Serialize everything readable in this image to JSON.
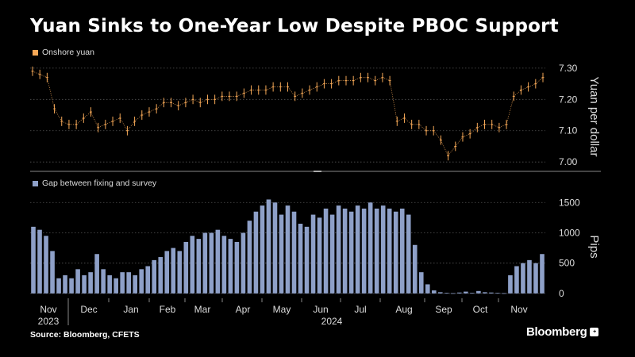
{
  "title": "Yuan Sinks to One-Year Low Despite PBOC Support",
  "source": "Source: Bloomberg, CFETS",
  "brand": "Bloomberg",
  "colors": {
    "yuan": "#f5a857",
    "gap": "#8ea0c8",
    "grid": "#555",
    "background": "#000000"
  },
  "chart_data": [
    {
      "type": "line",
      "series": [
        {
          "name": "Onshore yuan",
          "values": [
            7.29,
            7.28,
            7.27,
            7.17,
            7.13,
            7.12,
            7.12,
            7.14,
            7.16,
            7.11,
            7.12,
            7.13,
            7.14,
            7.1,
            7.13,
            7.15,
            7.16,
            7.17,
            7.19,
            7.19,
            7.18,
            7.19,
            7.2,
            7.19,
            7.2,
            7.2,
            7.21,
            7.21,
            7.21,
            7.22,
            7.23,
            7.23,
            7.23,
            7.24,
            7.24,
            7.24,
            7.21,
            7.22,
            7.23,
            7.24,
            7.25,
            7.25,
            7.26,
            7.26,
            7.26,
            7.27,
            7.27,
            7.26,
            7.27,
            7.26,
            7.13,
            7.14,
            7.12,
            7.12,
            7.1,
            7.1,
            7.07,
            7.02,
            7.05,
            7.08,
            7.09,
            7.11,
            7.12,
            7.12,
            7.11,
            7.12,
            7.21,
            7.23,
            7.24,
            7.25,
            7.27
          ]
        }
      ],
      "ylabel": "Yuan per dollar",
      "ylim": [
        6.97,
        7.32
      ],
      "yticks": [
        "7.30",
        "7.20",
        "7.10",
        "7.00"
      ],
      "grid": true
    },
    {
      "type": "bar",
      "series": [
        {
          "name": "Gap between fixing and survey",
          "values": [
            1100,
            1050,
            950,
            700,
            250,
            300,
            250,
            400,
            300,
            350,
            650,
            400,
            300,
            250,
            350,
            350,
            300,
            400,
            450,
            550,
            600,
            700,
            750,
            700,
            850,
            950,
            900,
            1000,
            1000,
            1050,
            950,
            900,
            850,
            1000,
            1200,
            1350,
            1450,
            1550,
            1500,
            1300,
            1450,
            1350,
            1150,
            1100,
            1300,
            1250,
            1400,
            1300,
            1450,
            1400,
            1350,
            1450,
            1400,
            1500,
            1400,
            1450,
            1400,
            1350,
            1400,
            1300,
            800,
            350,
            150,
            50,
            20,
            10,
            5,
            15,
            30,
            10,
            40,
            20,
            15,
            10,
            5,
            300,
            450,
            500,
            550,
            500,
            650
          ]
        }
      ],
      "ylabel": "Pips",
      "ylim": [
        -80,
        1700
      ],
      "yticks": [
        "1500",
        "1000",
        "500",
        "0"
      ],
      "grid": true
    }
  ],
  "xaxis": {
    "months": [
      "Nov",
      "Dec",
      "Jan",
      "Feb",
      "Mar",
      "Apr",
      "May",
      "Jun",
      "Jul",
      "Aug",
      "Sep",
      "Oct",
      "Nov"
    ],
    "years": [
      "2023",
      "2024"
    ]
  }
}
